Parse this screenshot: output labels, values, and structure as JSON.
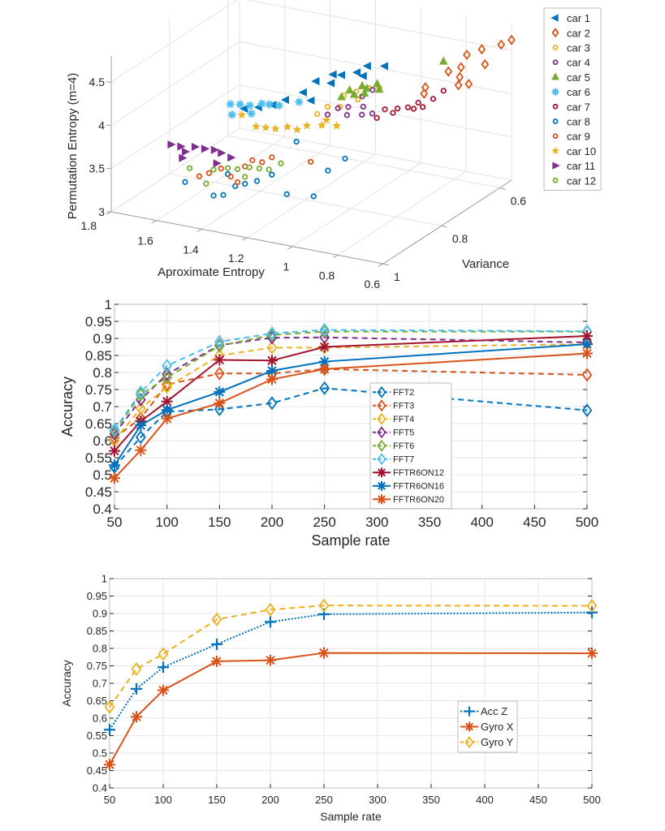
{
  "chart_data": [
    {
      "type": "scatter",
      "dims": 3,
      "title": "",
      "xlabel": "Aproximate Entropy",
      "ylabel": "Variance",
      "zlabel": "Permutation Entropy (m=4)",
      "xlim": [
        0.6,
        1.8
      ],
      "ylim": [
        0.5,
        1.0
      ],
      "zlim": [
        3,
        4.6
      ],
      "xticks": [
        "1.8",
        "1.6",
        "1.4",
        "1.2",
        "1",
        "0.8",
        "0.6"
      ],
      "yticks": [
        "1",
        "0.8",
        "0.6"
      ],
      "zticks": [
        "3",
        "3.5",
        "4",
        "4.5"
      ],
      "grid": true,
      "legend_position": "outside-right",
      "series": [
        {
          "name": "car 1",
          "marker": "triangle-left",
          "color": "#0072BD",
          "points": [
            [
              1.05,
              0.88,
              4.62
            ],
            [
              1.0,
              0.86,
              4.68
            ],
            [
              0.95,
              0.87,
              4.72
            ],
            [
              0.92,
              0.84,
              4.7
            ],
            [
              0.9,
              0.82,
              4.74
            ],
            [
              0.88,
              0.85,
              4.7
            ],
            [
              0.85,
              0.8,
              4.72
            ],
            [
              0.97,
              0.89,
              4.66
            ],
            [
              1.15,
              0.95,
              4.45
            ],
            [
              1.12,
              0.93,
              4.48
            ],
            [
              1.08,
              0.9,
              4.52
            ],
            [
              1.25,
              0.97,
              4.4
            ],
            [
              1.2,
              0.96,
              4.42
            ],
            [
              1.02,
              0.92,
              4.5
            ]
          ]
        },
        {
          "name": "car 2",
          "marker": "diamond",
          "color": "#D95319",
          "points": [
            [
              0.72,
              0.62,
              4.52
            ],
            [
              0.68,
              0.6,
              4.56
            ],
            [
              0.62,
              0.58,
              4.6
            ],
            [
              0.6,
              0.56,
              4.62
            ],
            [
              0.75,
              0.66,
              4.4
            ],
            [
              0.72,
              0.64,
              4.42
            ],
            [
              0.7,
              0.66,
              4.36
            ],
            [
              0.68,
              0.68,
              4.32
            ],
            [
              0.66,
              0.66,
              4.3
            ],
            [
              0.8,
              0.7,
              4.28
            ],
            [
              0.78,
              0.72,
              4.26
            ],
            [
              0.64,
              0.62,
              4.45
            ]
          ]
        },
        {
          "name": "car 3",
          "marker": "circle",
          "color": "#EDB120",
          "points": [
            [
              0.98,
              0.84,
              4.4
            ],
            [
              0.95,
              0.82,
              4.42
            ],
            [
              0.92,
              0.8,
              4.43
            ],
            [
              1.0,
              0.88,
              4.35
            ],
            [
              0.97,
              0.86,
              4.32
            ],
            [
              0.9,
              0.78,
              4.4
            ],
            [
              0.93,
              0.83,
              4.36
            ],
            [
              1.02,
              0.9,
              4.3
            ]
          ]
        },
        {
          "name": "car 4",
          "marker": "circle",
          "color": "#7E2F8E",
          "points": [
            [
              0.98,
              0.86,
              4.3
            ],
            [
              0.96,
              0.84,
              4.28
            ],
            [
              0.94,
              0.86,
              4.24
            ],
            [
              0.92,
              0.82,
              4.26
            ],
            [
              0.9,
              0.84,
              4.22
            ],
            [
              0.88,
              0.82,
              4.2
            ],
            [
              0.95,
              0.8,
              4.32
            ],
            [
              1.0,
              0.88,
              4.26
            ],
            [
              0.93,
              0.78,
              4.36
            ]
          ]
        },
        {
          "name": "car 5",
          "marker": "triangle-up",
          "color": "#77AC30",
          "points": [
            [
              0.98,
              0.82,
              4.42
            ],
            [
              0.95,
              0.8,
              4.44
            ],
            [
              0.93,
              0.8,
              4.42
            ],
            [
              0.91,
              0.78,
              4.44
            ],
            [
              0.99,
              0.84,
              4.38
            ],
            [
              0.96,
              0.82,
              4.38
            ],
            [
              0.94,
              0.8,
              4.36
            ],
            [
              0.72,
              0.7,
              4.62
            ],
            [
              0.9,
              0.78,
              4.38
            ]
          ]
        },
        {
          "name": "car 6",
          "marker": "asterisk",
          "color": "#4DBEEE",
          "points": [
            [
              1.3,
              0.98,
              4.45
            ],
            [
              1.27,
              0.97,
              4.44
            ],
            [
              1.24,
              0.96,
              4.42
            ],
            [
              1.2,
              0.95,
              4.44
            ],
            [
              1.18,
              0.94,
              4.42
            ],
            [
              1.15,
              0.93,
              4.4
            ],
            [
              1.28,
              0.99,
              4.36
            ],
            [
              1.22,
              0.97,
              4.36
            ],
            [
              1.1,
              0.9,
              4.4
            ]
          ]
        },
        {
          "name": "car 7",
          "marker": "circle",
          "color": "#A2142F",
          "points": [
            [
              0.85,
              0.8,
              4.22
            ],
            [
              0.82,
              0.78,
              4.2
            ],
            [
              0.8,
              0.76,
              4.18
            ],
            [
              0.78,
              0.74,
              4.2
            ],
            [
              0.76,
              0.74,
              4.16
            ],
            [
              0.74,
              0.72,
              4.22
            ],
            [
              0.84,
              0.78,
              4.14
            ],
            [
              0.8,
              0.74,
              4.12
            ],
            [
              0.86,
              0.82,
              4.16
            ],
            [
              0.72,
              0.7,
              4.28
            ]
          ]
        },
        {
          "name": "car 8",
          "marker": "circle",
          "color": "#0072BD",
          "points": [
            [
              1.5,
              0.98,
              3.45
            ],
            [
              1.4,
              0.96,
              3.3
            ],
            [
              1.37,
              0.95,
              3.3
            ],
            [
              1.33,
              0.94,
              3.4
            ],
            [
              1.3,
              0.93,
              3.42
            ],
            [
              1.26,
              0.92,
              3.45
            ],
            [
              1.22,
              0.9,
              3.5
            ],
            [
              1.18,
              0.88,
              3.25
            ],
            [
              1.1,
              0.85,
              3.2
            ],
            [
              1.05,
              0.84,
              3.5
            ],
            [
              1.0,
              0.82,
              3.62
            ],
            [
              1.15,
              0.87,
              3.85
            ],
            [
              1.35,
              0.95,
              3.55
            ]
          ]
        },
        {
          "name": "car 9",
          "marker": "circle",
          "color": "#D95319",
          "points": [
            [
              1.45,
              0.97,
              3.52
            ],
            [
              1.42,
              0.96,
              3.55
            ],
            [
              1.38,
              0.95,
              3.6
            ],
            [
              1.35,
              0.94,
              3.5
            ],
            [
              1.32,
              0.94,
              3.45
            ],
            [
              1.3,
              0.93,
              3.62
            ],
            [
              1.28,
              0.92,
              3.68
            ],
            [
              1.25,
              0.91,
              3.65
            ],
            [
              1.22,
              0.9,
              3.7
            ],
            [
              1.1,
              0.86,
              3.62
            ]
          ]
        },
        {
          "name": "car 10",
          "marker": "star",
          "color": "#EDB120",
          "points": [
            [
              1.25,
              0.98,
              4.35
            ],
            [
              1.2,
              0.97,
              4.22
            ],
            [
              1.17,
              0.96,
              4.2
            ],
            [
              1.14,
              0.95,
              4.18
            ],
            [
              1.1,
              0.94,
              4.2
            ],
            [
              1.07,
              0.93,
              4.16
            ],
            [
              1.04,
              0.92,
              4.2
            ],
            [
              1.0,
              0.9,
              4.18
            ],
            [
              0.98,
              0.9,
              4.25
            ],
            [
              0.96,
              0.88,
              4.15
            ]
          ]
        },
        {
          "name": "car 11",
          "marker": "triangle-right",
          "color": "#7E2F8E",
          "points": [
            [
              1.55,
              0.99,
              3.88
            ],
            [
              1.52,
              0.98,
              3.85
            ],
            [
              1.5,
              0.98,
              3.8
            ],
            [
              1.47,
              0.97,
              3.85
            ],
            [
              1.44,
              0.96,
              3.82
            ],
            [
              1.41,
              0.95,
              3.8
            ],
            [
              1.38,
              0.95,
              3.78
            ],
            [
              1.4,
              0.95,
              3.65
            ],
            [
              1.35,
              0.94,
              3.72
            ],
            [
              1.5,
              0.99,
              3.75
            ]
          ]
        },
        {
          "name": "car 12",
          "marker": "circle",
          "color": "#77AC30",
          "points": [
            [
              1.48,
              0.98,
              3.62
            ],
            [
              1.4,
              0.96,
              3.6
            ],
            [
              1.35,
              0.95,
              3.62
            ],
            [
              1.32,
              0.94,
              3.6
            ],
            [
              1.28,
              0.93,
              3.62
            ],
            [
              1.25,
              0.92,
              3.6
            ],
            [
              1.22,
              0.91,
              3.58
            ],
            [
              1.18,
              0.9,
              3.65
            ],
            [
              1.42,
              0.97,
              3.45
            ],
            [
              1.3,
              0.93,
              3.5
            ]
          ]
        }
      ]
    },
    {
      "type": "line",
      "title": "",
      "xlabel": "Sample rate",
      "ylabel": "Accuracy",
      "x": [
        50,
        75,
        100,
        150,
        200,
        250,
        500
      ],
      "xlim": [
        50,
        500
      ],
      "ylim": [
        0.4,
        1.0
      ],
      "xticks": [
        "50",
        "100",
        "150",
        "200",
        "250",
        "300",
        "350",
        "400",
        "450",
        "500"
      ],
      "yticks": [
        "0.4",
        "0.45",
        "0.5",
        "0.55",
        "0.6",
        "0.65",
        "0.7",
        "0.75",
        "0.8",
        "0.85",
        "0.9",
        "0.95",
        "1"
      ],
      "grid": true,
      "legend_position": "center",
      "series": [
        {
          "name": "FFT2",
          "color": "#0072BD",
          "style": "dashed",
          "marker": "diamond",
          "values": [
            0.523,
            0.61,
            0.685,
            0.692,
            0.71,
            0.754,
            0.689
          ]
        },
        {
          "name": "FFT3",
          "color": "#D95319",
          "style": "dashed",
          "marker": "diamond",
          "values": [
            0.608,
            0.666,
            0.765,
            0.797,
            0.797,
            0.81,
            0.793
          ]
        },
        {
          "name": "FFT4",
          "color": "#EDB120",
          "style": "dashed",
          "marker": "diamond",
          "values": [
            0.6,
            0.695,
            0.757,
            0.85,
            0.873,
            0.873,
            0.883
          ]
        },
        {
          "name": "FFT5",
          "color": "#7E2F8E",
          "style": "dashed",
          "marker": "diamond",
          "values": [
            0.62,
            0.72,
            0.795,
            0.88,
            0.902,
            0.903,
            0.888
          ]
        },
        {
          "name": "FFT6",
          "color": "#77AC30",
          "style": "dashed",
          "marker": "diamond",
          "values": [
            0.628,
            0.735,
            0.785,
            0.878,
            0.91,
            0.92,
            0.92
          ]
        },
        {
          "name": "FFT7",
          "color": "#4DBEEE",
          "style": "dashed",
          "marker": "diamond",
          "values": [
            0.632,
            0.742,
            0.82,
            0.89,
            0.915,
            0.925,
            0.921
          ]
        },
        {
          "name": "FFTR6ON12",
          "color": "#A2142F",
          "style": "solid",
          "marker": "asterisk",
          "values": [
            0.57,
            0.657,
            0.715,
            0.837,
            0.835,
            0.875,
            0.907
          ]
        },
        {
          "name": "FFTR6ON16",
          "color": "#0072BD",
          "style": "solid",
          "marker": "asterisk",
          "values": [
            0.528,
            0.645,
            0.69,
            0.743,
            0.805,
            0.832,
            0.883
          ]
        },
        {
          "name": "FFTR6ON20",
          "color": "#D95319",
          "style": "solid",
          "marker": "asterisk",
          "values": [
            0.49,
            0.572,
            0.665,
            0.71,
            0.78,
            0.81,
            0.856
          ]
        }
      ]
    },
    {
      "type": "line",
      "title": "",
      "xlabel": "Sample rate",
      "ylabel": "Accuracy",
      "x": [
        50,
        75,
        100,
        150,
        200,
        250,
        500
      ],
      "xlim": [
        50,
        500
      ],
      "ylim": [
        0.4,
        1.0
      ],
      "xticks": [
        "50",
        "100",
        "150",
        "200",
        "250",
        "300",
        "350",
        "400",
        "450",
        "500"
      ],
      "yticks": [
        "0.4",
        "0.45",
        "0.5",
        "0.55",
        "0.6",
        "0.65",
        "0.7",
        "0.75",
        "0.8",
        "0.85",
        "0.9",
        "0.95",
        "1"
      ],
      "grid": true,
      "legend_position": "center-right",
      "series": [
        {
          "name": "Acc Z",
          "color": "#0072BD",
          "style": "dotted",
          "marker": "plus",
          "values": [
            0.567,
            0.684,
            0.746,
            0.812,
            0.876,
            0.898,
            0.903
          ]
        },
        {
          "name": "Gyro X",
          "color": "#D95319",
          "style": "solid",
          "marker": "asterisk",
          "values": [
            0.467,
            0.604,
            0.68,
            0.763,
            0.766,
            0.787,
            0.786
          ]
        },
        {
          "name": "Gyro Y",
          "color": "#EDB120",
          "style": "dashed",
          "marker": "diamond",
          "values": [
            0.632,
            0.741,
            0.784,
            0.883,
            0.911,
            0.923,
            0.922
          ]
        }
      ]
    }
  ]
}
